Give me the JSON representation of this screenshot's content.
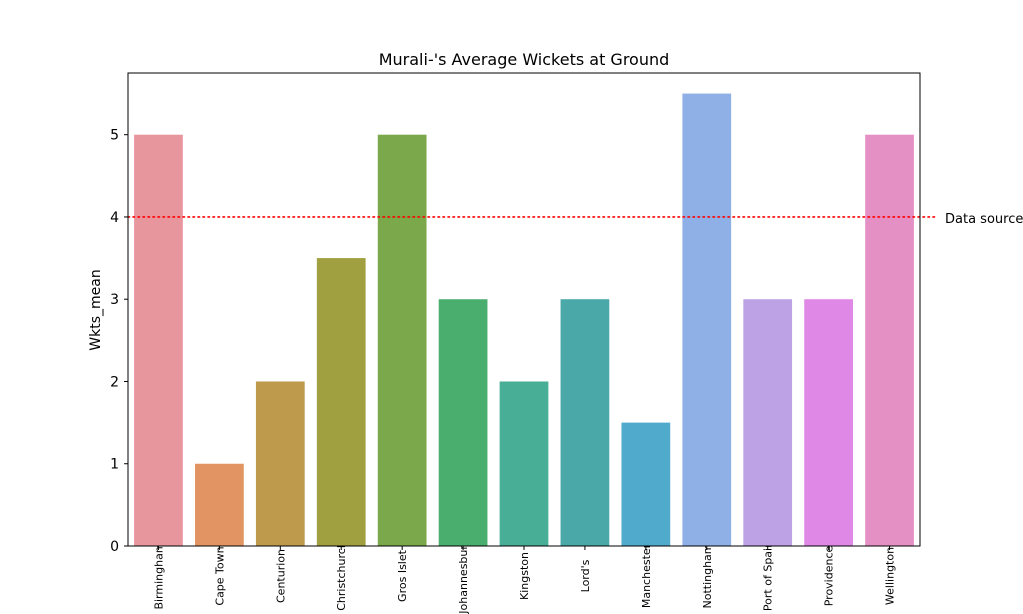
{
  "chart_data": {
    "type": "bar",
    "title": "Murali-'s Average Wickets at Ground",
    "xlabel": "",
    "ylabel": "Wkts_mean",
    "ylim": [
      0,
      5.75
    ],
    "yticks": [
      0,
      1,
      2,
      3,
      4,
      5
    ],
    "grid": false,
    "categories": [
      "Birmingham",
      "Cape Town",
      "Centurion",
      "Christchurch",
      "Gros Islet",
      "Johannesburg",
      "Kingston",
      "Lord's",
      "Manchester",
      "Nottingham",
      "Port of Spain",
      "Providence",
      "Wellington"
    ],
    "values": [
      5,
      1,
      2,
      3.5,
      5,
      3,
      2,
      3,
      1.5,
      5.5,
      3,
      3,
      5
    ],
    "colors": [
      "#e8969e",
      "#e29563",
      "#bd9a4c",
      "#a0a040",
      "#7aa84a",
      "#4aae6e",
      "#48ae96",
      "#4aa8a8",
      "#4faacc",
      "#8fb0e6",
      "#bda2e6",
      "#e088e6",
      "#e590c4"
    ],
    "reference_line": {
      "y": 4,
      "style": "dotted",
      "color": "#ff0000"
    },
    "annotation": "Data source"
  }
}
